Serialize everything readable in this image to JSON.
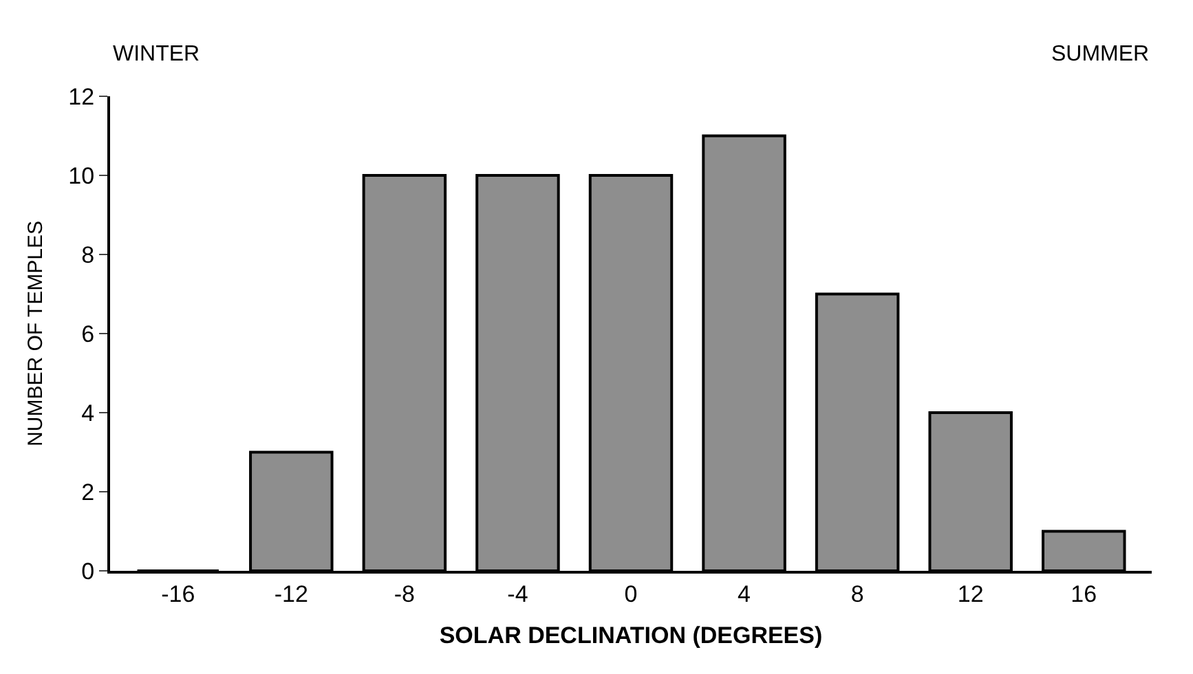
{
  "chart_data": {
    "type": "bar",
    "xlabel": "SOLAR DECLINATION (DEGREES)",
    "ylabel": "NUMBER OF TEMPLES",
    "categories": [
      "-16",
      "-12",
      "-8",
      "-4",
      "0",
      "4",
      "8",
      "12",
      "16"
    ],
    "values": [
      0,
      3,
      10,
      10,
      10,
      11,
      7,
      4,
      1
    ],
    "color": "#8e8e8e",
    "ylim": [
      0,
      12
    ],
    "yticks": [
      0,
      2,
      4,
      6,
      8,
      10,
      12
    ],
    "annotations": [
      "WINTER",
      "SUMMER"
    ]
  }
}
